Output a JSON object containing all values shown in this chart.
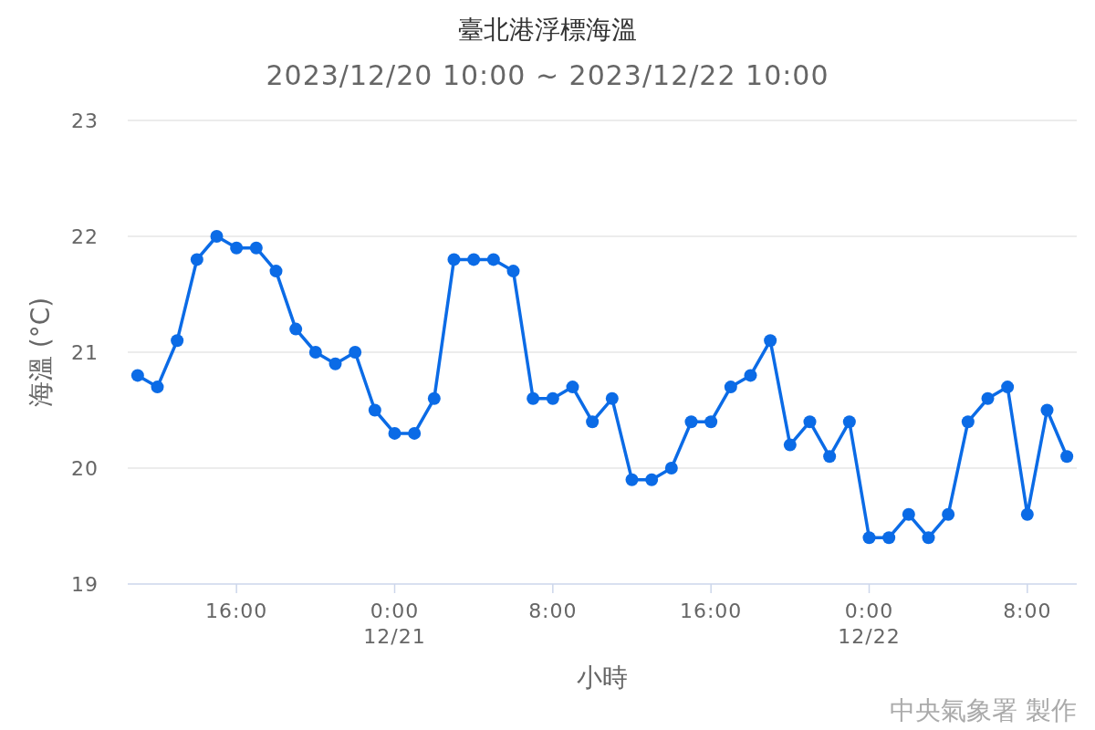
{
  "chart_data": {
    "type": "line",
    "title": "臺北港浮標海溫",
    "subtitle": "2023/12/20 10:00 ~ 2023/12/22 10:00",
    "xlabel": "小時",
    "ylabel": "海溫 (°C)",
    "annotations": [
      "中央氣象署 製作"
    ],
    "x": [
      "2023-12-20T11:00",
      "2023-12-20T12:00",
      "2023-12-20T13:00",
      "2023-12-20T14:00",
      "2023-12-20T15:00",
      "2023-12-20T16:00",
      "2023-12-20T17:00",
      "2023-12-20T18:00",
      "2023-12-20T19:00",
      "2023-12-20T20:00",
      "2023-12-20T21:00",
      "2023-12-20T22:00",
      "2023-12-20T23:00",
      "2023-12-21T00:00",
      "2023-12-21T01:00",
      "2023-12-21T02:00",
      "2023-12-21T03:00",
      "2023-12-21T04:00",
      "2023-12-21T05:00",
      "2023-12-21T06:00",
      "2023-12-21T07:00",
      "2023-12-21T08:00",
      "2023-12-21T09:00",
      "2023-12-21T10:00",
      "2023-12-21T11:00",
      "2023-12-21T12:00",
      "2023-12-21T13:00",
      "2023-12-21T14:00",
      "2023-12-21T15:00",
      "2023-12-21T16:00",
      "2023-12-21T17:00",
      "2023-12-21T18:00",
      "2023-12-21T19:00",
      "2023-12-21T20:00",
      "2023-12-21T21:00",
      "2023-12-21T22:00",
      "2023-12-21T23:00",
      "2023-12-22T00:00",
      "2023-12-22T01:00",
      "2023-12-22T02:00",
      "2023-12-22T03:00",
      "2023-12-22T04:00",
      "2023-12-22T05:00",
      "2023-12-22T06:00",
      "2023-12-22T07:00",
      "2023-12-22T08:00",
      "2023-12-22T09:00",
      "2023-12-22T10:00"
    ],
    "series": [
      {
        "color": "#0b6be6",
        "values": [
          20.8,
          20.7,
          21.1,
          21.8,
          22.0,
          21.9,
          21.9,
          21.7,
          21.2,
          21.0,
          20.9,
          21.0,
          20.5,
          20.3,
          20.3,
          20.6,
          21.8,
          21.8,
          21.8,
          21.7,
          20.6,
          20.6,
          20.7,
          20.4,
          20.6,
          19.9,
          19.9,
          20.0,
          20.4,
          20.4,
          20.7,
          20.8,
          21.1,
          20.2,
          20.4,
          20.1,
          20.4,
          19.4,
          19.4,
          19.6,
          19.4,
          19.6,
          20.4,
          20.6,
          20.7,
          19.6,
          20.5,
          20.1
        ]
      }
    ],
    "xlim": [
      "2023-12-20T10:30",
      "2023-12-22T10:30"
    ],
    "xticks": [
      {
        "value": "2023-12-20T16:00",
        "label": "16:00"
      },
      {
        "value": "2023-12-21T00:00",
        "label": "0:00\n12/21"
      },
      {
        "value": "2023-12-21T08:00",
        "label": "8:00"
      },
      {
        "value": "2023-12-21T16:00",
        "label": "16:00"
      },
      {
        "value": "2023-12-22T00:00",
        "label": "0:00\n12/22"
      },
      {
        "value": "2023-12-22T08:00",
        "label": "8:00"
      }
    ],
    "ylim": [
      19,
      23
    ],
    "yticks": [
      19,
      20,
      21,
      22,
      23
    ],
    "grid": "y",
    "marker": "circle",
    "line_style": "solid"
  }
}
